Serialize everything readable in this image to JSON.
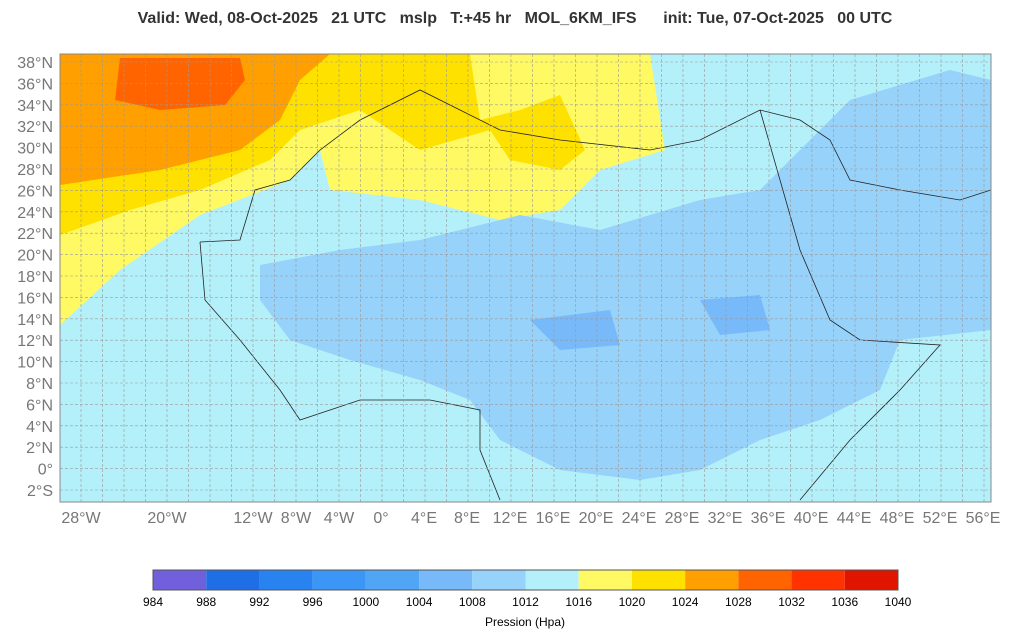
{
  "header": {
    "title": "Valid: Wed, 08-Oct-2025   21 UTC   mslp   T:+45 hr   MOL_6KM_IFS      init: Tue, 07-Oct-2025   00 UTC"
  },
  "map": {
    "lat_labels": [
      "38°N",
      "36°N",
      "34°N",
      "32°N",
      "30°N",
      "28°N",
      "26°N",
      "24°N",
      "22°N",
      "20°N",
      "18°N",
      "16°N",
      "14°N",
      "12°N",
      "10°N",
      "8°N",
      "6°N",
      "4°N",
      "2°N",
      "0°",
      "2°S"
    ],
    "lon_labels": [
      "28°W",
      "20°W",
      "12°W",
      "8°W",
      "4°W",
      "0°",
      "4°E",
      "8°E",
      "12°E",
      "16°E",
      "20°E",
      "24°E",
      "28°E",
      "32°E",
      "36°E",
      "40°E",
      "44°E",
      "48°E",
      "52°E",
      "56°E"
    ]
  },
  "colorbar": {
    "colors": [
      "#7060dc",
      "#1e6ee6",
      "#2882f0",
      "#3c96f5",
      "#50a5f5",
      "#78b9fa",
      "#96d2fa",
      "#b4f0fa",
      "#fffa64",
      "#ffe100",
      "#ffa000",
      "#ff6400",
      "#ff3200",
      "#e11400"
    ],
    "ticks": [
      "984",
      "988",
      "992",
      "996",
      "1000",
      "1004",
      "1008",
      "1012",
      "1016",
      "1020",
      "1024",
      "1028",
      "1032",
      "1036",
      "1040"
    ],
    "label": "Pression (Hpa)"
  }
}
